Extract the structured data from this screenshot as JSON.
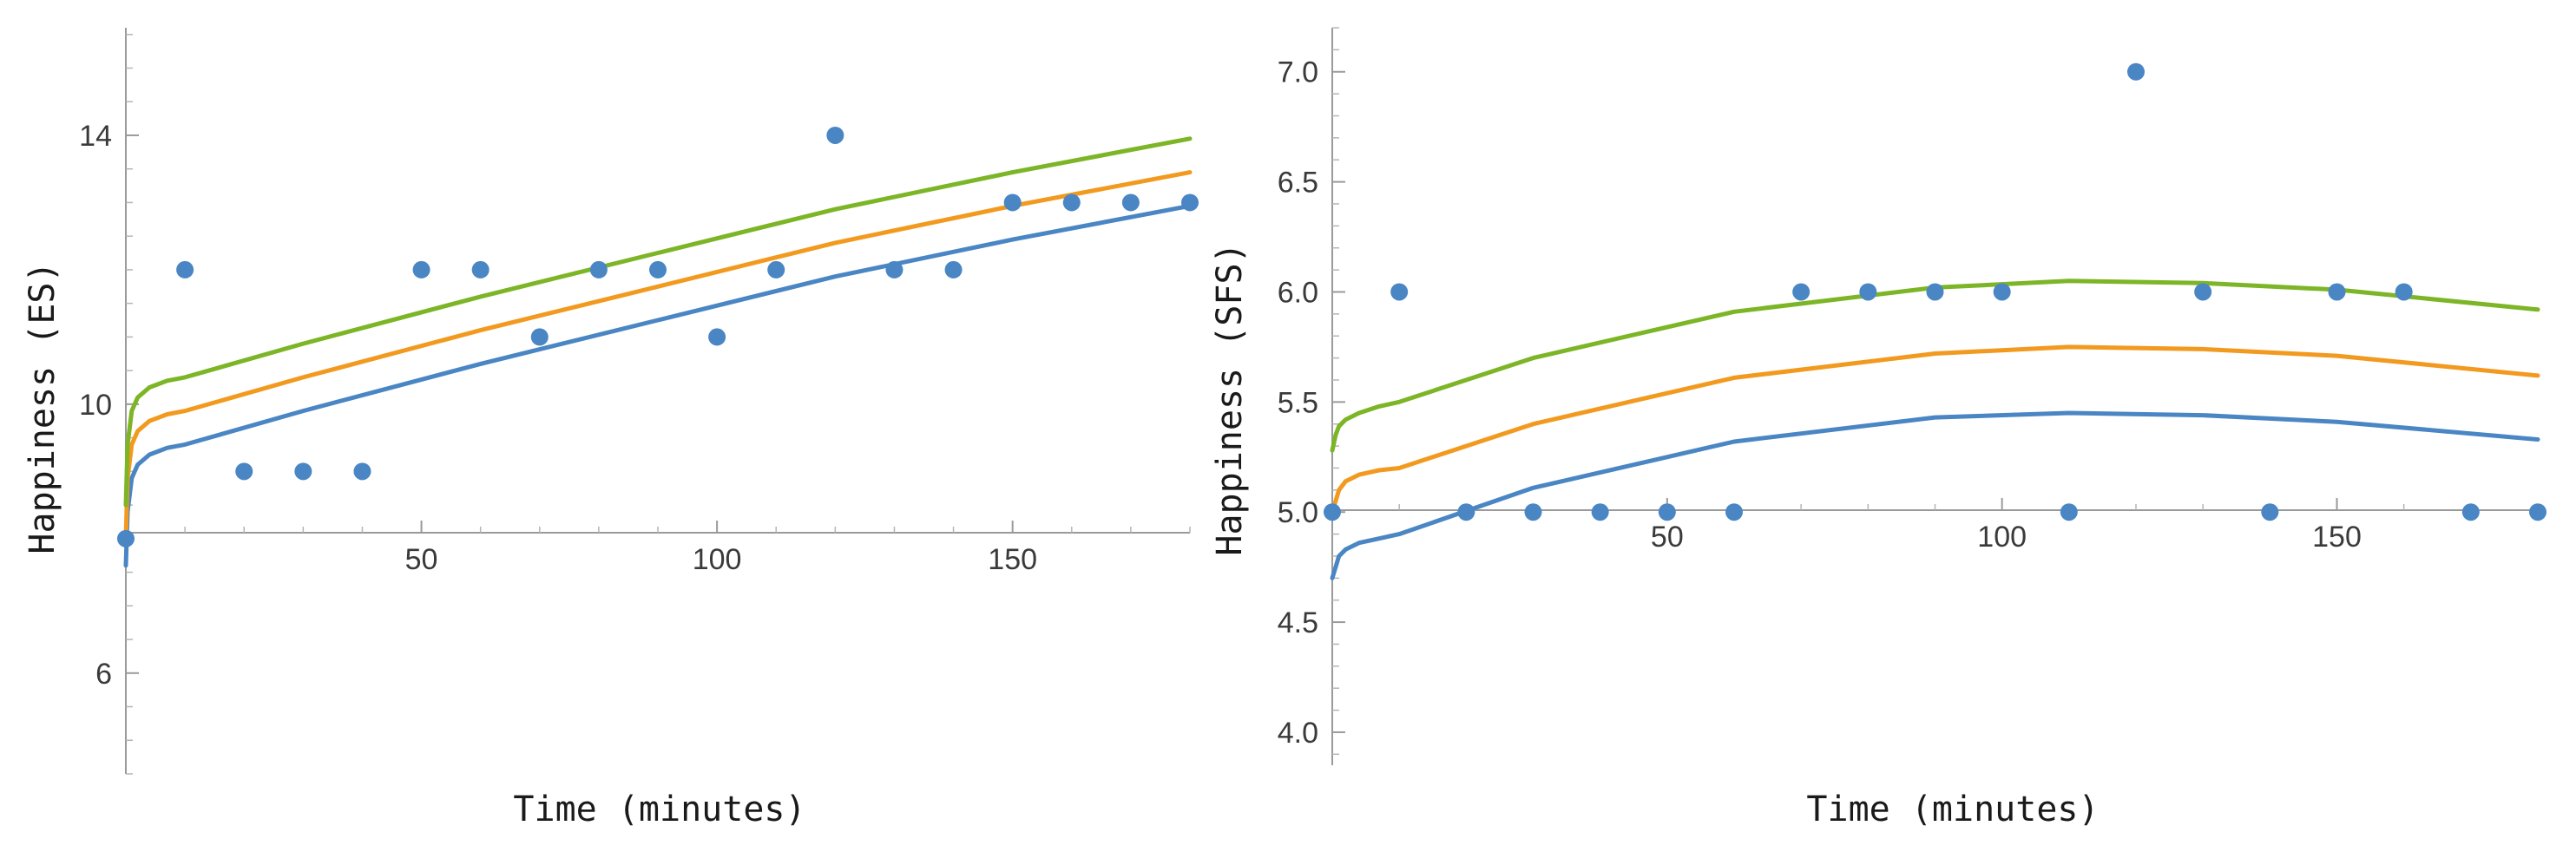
{
  "chart_data": [
    {
      "type": "scatter",
      "title": "",
      "xlabel": "Time (minutes)",
      "ylabel": "Happiness (ES)",
      "xlim": [
        0,
        180
      ],
      "ylim": [
        4.5,
        15.6
      ],
      "x_ticks": [
        50,
        100,
        150
      ],
      "y_ticks": [
        6,
        10,
        14
      ],
      "x_tick_labels": [
        "50",
        "100",
        "150"
      ],
      "y_tick_labels": [
        "6",
        "10",
        "14"
      ],
      "grid": false,
      "points": {
        "name": "observations",
        "color": "#4a86c4",
        "x": [
          0,
          10,
          20,
          30,
          40,
          50,
          60,
          70,
          80,
          90,
          100,
          110,
          120,
          130,
          140,
          150,
          160,
          170,
          180
        ],
        "y": [
          8,
          12,
          9,
          9,
          9,
          12,
          12,
          11,
          12,
          12,
          11,
          12,
          14,
          12,
          12,
          13,
          13,
          13,
          13
        ]
      },
      "series": [
        {
          "name": "fit-lower",
          "color": "#4a86c4",
          "x": [
            0,
            0.3,
            1,
            2,
            4,
            7,
            10,
            30,
            60,
            90,
            120,
            150,
            180
          ],
          "y": [
            7.6,
            8.4,
            8.9,
            9.1,
            9.25,
            9.35,
            9.4,
            9.9,
            10.6,
            11.25,
            11.9,
            12.45,
            12.95
          ]
        },
        {
          "name": "fit-middle",
          "color": "#f29a1f",
          "x": [
            0,
            0.3,
            1,
            2,
            4,
            7,
            10,
            30,
            60,
            90,
            120,
            150,
            180
          ],
          "y": [
            8.0,
            8.9,
            9.4,
            9.6,
            9.75,
            9.85,
            9.9,
            10.4,
            11.1,
            11.75,
            12.4,
            12.95,
            13.45
          ]
        },
        {
          "name": "fit-upper",
          "color": "#7cb526",
          "x": [
            0,
            0.3,
            1,
            2,
            4,
            7,
            10,
            30,
            60,
            90,
            120,
            150,
            180
          ],
          "y": [
            8.5,
            9.4,
            9.9,
            10.1,
            10.25,
            10.35,
            10.4,
            10.9,
            11.6,
            12.25,
            12.9,
            13.45,
            13.95
          ]
        }
      ]
    },
    {
      "type": "scatter",
      "title": "",
      "xlabel": "Time (minutes)",
      "ylabel": "Happiness (SFS)",
      "xlim": [
        0,
        180
      ],
      "ylim": [
        3.85,
        7.2
      ],
      "x_ticks": [
        50,
        100,
        150
      ],
      "y_ticks": [
        4.0,
        4.5,
        5.0,
        5.5,
        6.0,
        6.5,
        7.0
      ],
      "x_tick_labels": [
        "50",
        "100",
        "150"
      ],
      "y_tick_labels": [
        "4.0",
        "4.5",
        "5.0",
        "5.5",
        "6.0",
        "6.5",
        "7.0"
      ],
      "grid": false,
      "points": {
        "name": "observations",
        "color": "#4a86c4",
        "x": [
          0,
          10,
          20,
          30,
          40,
          50,
          60,
          70,
          80,
          90,
          100,
          110,
          120,
          130,
          140,
          150,
          160,
          170,
          180
        ],
        "y": [
          5,
          6,
          5,
          5,
          5,
          5,
          5,
          6,
          6,
          6,
          6,
          5,
          7,
          6,
          5,
          6,
          6,
          5,
          5
        ]
      },
      "series": [
        {
          "name": "fit-lower",
          "color": "#4a86c4",
          "x": [
            0,
            0.5,
            1,
            2,
            4,
            7,
            10,
            30,
            60,
            90,
            110,
            130,
            150,
            180
          ],
          "y": [
            4.7,
            4.75,
            4.8,
            4.83,
            4.86,
            4.88,
            4.9,
            5.11,
            5.32,
            5.43,
            5.45,
            5.44,
            5.41,
            5.33
          ]
        },
        {
          "name": "fit-middle",
          "color": "#f29a1f",
          "x": [
            0,
            0.5,
            1,
            2,
            4,
            7,
            10,
            30,
            60,
            90,
            110,
            130,
            150,
            180
          ],
          "y": [
            5.0,
            5.05,
            5.1,
            5.14,
            5.17,
            5.19,
            5.2,
            5.4,
            5.61,
            5.72,
            5.75,
            5.74,
            5.71,
            5.62
          ]
        },
        {
          "name": "fit-upper",
          "color": "#7cb526",
          "x": [
            0,
            0.5,
            1,
            2,
            4,
            7,
            10,
            30,
            60,
            90,
            110,
            130,
            150,
            180
          ],
          "y": [
            5.28,
            5.35,
            5.39,
            5.42,
            5.45,
            5.48,
            5.5,
            5.7,
            5.91,
            6.02,
            6.05,
            6.04,
            6.01,
            5.92
          ]
        }
      ]
    }
  ]
}
